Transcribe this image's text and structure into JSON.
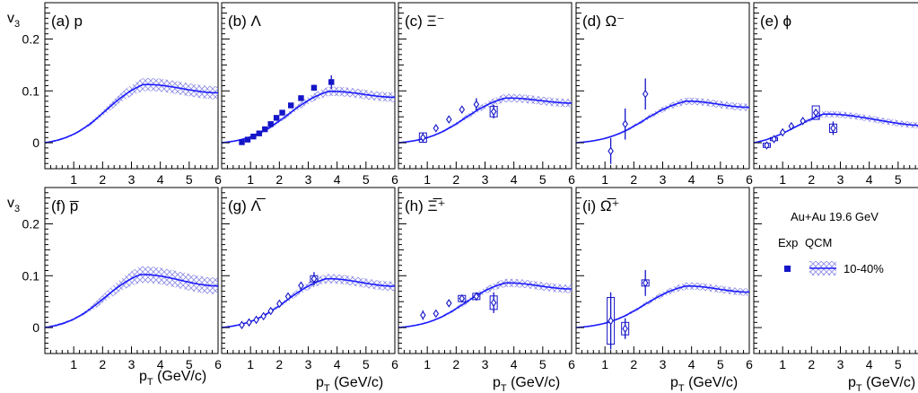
{
  "chart_data": {
    "type": "scatter",
    "ylabel_main": "v",
    "ylabel_sub": "3",
    "xlabel_main": "p",
    "xlabel_sub": "T",
    "xlabel_unit": " (GeV/c)",
    "xlim": [
      0,
      6
    ],
    "ylim": [
      -0.05,
      0.27
    ],
    "x_ticks": [
      "1",
      "2",
      "3",
      "4",
      "5",
      "6"
    ],
    "y_ticks": [
      "0",
      "0.1",
      "0.2"
    ],
    "colors": {
      "model": "#1a1aff",
      "band": "#9999ee",
      "data": "#1414c8"
    },
    "legend": {
      "title": "Au+Au 19.6 GeV",
      "col_exp": "Exp",
      "col_model": "QCM",
      "entry": "10-40%"
    },
    "panels": [
      {
        "label": "(a) p",
        "model": {
          "peak_x": 3.4,
          "peak_y": 0.112,
          "end_y": 0.094,
          "band_width": 0.025
        },
        "points": [],
        "marker": "none"
      },
      {
        "label": "(b) Λ",
        "model": {
          "peak_x": 3.7,
          "peak_y": 0.099,
          "end_y": 0.086,
          "band_width": 0.018
        },
        "marker": "square",
        "points": [
          {
            "x": 0.7,
            "y": 0.001,
            "err": 0.003
          },
          {
            "x": 0.9,
            "y": 0.006,
            "err": 0.003
          },
          {
            "x": 1.1,
            "y": 0.012,
            "err": 0.003
          },
          {
            "x": 1.3,
            "y": 0.018,
            "err": 0.003
          },
          {
            "x": 1.5,
            "y": 0.026,
            "err": 0.003
          },
          {
            "x": 1.7,
            "y": 0.036,
            "err": 0.003
          },
          {
            "x": 1.9,
            "y": 0.048,
            "err": 0.003
          },
          {
            "x": 2.1,
            "y": 0.058,
            "err": 0.003
          },
          {
            "x": 2.4,
            "y": 0.072,
            "err": 0.004
          },
          {
            "x": 2.75,
            "y": 0.086,
            "err": 0.004
          },
          {
            "x": 3.2,
            "y": 0.106,
            "err": 0.006
          },
          {
            "x": 3.8,
            "y": 0.117,
            "err": 0.013
          }
        ]
      },
      {
        "label": "(c) Ξ⁻",
        "model": {
          "peak_x": 3.7,
          "peak_y": 0.086,
          "end_y": 0.075,
          "band_width": 0.016
        },
        "marker": "diamond",
        "points": [
          {
            "x": 0.85,
            "y": 0.01,
            "err": 0.009,
            "sys": 0.009
          },
          {
            "x": 1.3,
            "y": 0.028,
            "err": 0.003
          },
          {
            "x": 1.75,
            "y": 0.045,
            "err": 0.003
          },
          {
            "x": 2.2,
            "y": 0.064,
            "err": 0.004
          },
          {
            "x": 2.7,
            "y": 0.074,
            "err": 0.012
          },
          {
            "x": 3.3,
            "y": 0.06,
            "err": 0.013,
            "sys": 0.01
          }
        ]
      },
      {
        "label": "(d) Ω⁻",
        "model": {
          "peak_x": 3.8,
          "peak_y": 0.08,
          "end_y": 0.067,
          "band_width": 0.014
        },
        "marker": "diamond",
        "points": [
          {
            "x": 1.2,
            "y": -0.016,
            "err": 0.025
          },
          {
            "x": 1.7,
            "y": 0.036,
            "err": 0.03
          },
          {
            "x": 2.4,
            "y": 0.094,
            "err": 0.03
          }
        ]
      },
      {
        "label": "(e) ϕ",
        "model": {
          "peak_x": 2.4,
          "peak_y": 0.055,
          "end_y": 0.031,
          "band_width": 0.012
        },
        "marker": "diamond",
        "points": [
          {
            "x": 0.45,
            "y": -0.005,
            "err": 0.004,
            "sys": 0.004
          },
          {
            "x": 0.7,
            "y": 0.007,
            "err": 0.004,
            "sys": 0.003
          },
          {
            "x": 1.0,
            "y": 0.02,
            "err": 0.003
          },
          {
            "x": 1.3,
            "y": 0.032,
            "err": 0.003
          },
          {
            "x": 1.7,
            "y": 0.042,
            "err": 0.004
          },
          {
            "x": 2.15,
            "y": 0.058,
            "err": 0.006,
            "sys": 0.013
          },
          {
            "x": 2.75,
            "y": 0.028,
            "err": 0.013,
            "sys": 0.008
          }
        ]
      },
      {
        "label": "(f) p̅",
        "model": {
          "peak_x": 3.3,
          "peak_y": 0.102,
          "end_y": 0.078,
          "band_width": 0.032
        },
        "points": [],
        "marker": "none"
      },
      {
        "label": "(g) Λ̅",
        "model": {
          "peak_x": 3.6,
          "peak_y": 0.094,
          "end_y": 0.078,
          "band_width": 0.018
        },
        "marker": "diamond",
        "points": [
          {
            "x": 0.7,
            "y": 0.005,
            "err": 0.003
          },
          {
            "x": 0.95,
            "y": 0.01,
            "err": 0.003
          },
          {
            "x": 1.2,
            "y": 0.015,
            "err": 0.003
          },
          {
            "x": 1.45,
            "y": 0.022,
            "err": 0.003
          },
          {
            "x": 1.7,
            "y": 0.032,
            "err": 0.004
          },
          {
            "x": 2.0,
            "y": 0.046,
            "err": 0.004
          },
          {
            "x": 2.3,
            "y": 0.06,
            "err": 0.004
          },
          {
            "x": 2.75,
            "y": 0.081,
            "err": 0.006
          },
          {
            "x": 3.2,
            "y": 0.094,
            "err": 0.013,
            "sys": 0.006
          }
        ]
      },
      {
        "label": "(h) Ξ̅⁺",
        "model": {
          "peak_x": 3.7,
          "peak_y": 0.086,
          "end_y": 0.073,
          "band_width": 0.016
        },
        "marker": "diamond",
        "points": [
          {
            "x": 0.85,
            "y": 0.024,
            "err": 0.009
          },
          {
            "x": 1.3,
            "y": 0.027,
            "err": 0.004
          },
          {
            "x": 1.75,
            "y": 0.047,
            "err": 0.005
          },
          {
            "x": 2.2,
            "y": 0.056,
            "err": 0.007,
            "sys": 0.006
          },
          {
            "x": 2.7,
            "y": 0.06,
            "err": 0.008,
            "sys": 0.006
          },
          {
            "x": 3.3,
            "y": 0.048,
            "err": 0.02,
            "sys": 0.013
          }
        ]
      },
      {
        "label": "(i) Ω̅⁺",
        "model": {
          "peak_x": 3.8,
          "peak_y": 0.08,
          "end_y": 0.067,
          "band_width": 0.014
        },
        "marker": "diamond",
        "points": [
          {
            "x": 1.2,
            "y": 0.013,
            "err": 0.055,
            "sys": 0.045
          },
          {
            "x": 1.7,
            "y": -0.002,
            "err": 0.02,
            "sys": 0.012
          },
          {
            "x": 2.4,
            "y": 0.086,
            "err": 0.025,
            "sys": 0.006
          }
        ]
      }
    ]
  }
}
